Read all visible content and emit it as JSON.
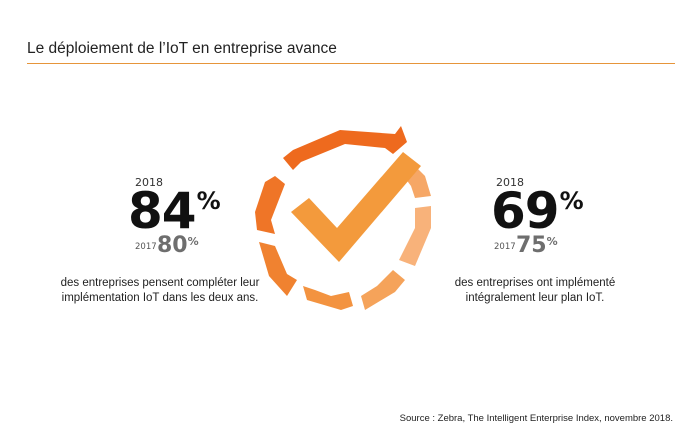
{
  "header": {
    "title": "Le déploiement de l’IoT en entreprise avance"
  },
  "left_stat": {
    "year": "2018",
    "value": "84",
    "unit": "%",
    "prev_year": "2017",
    "prev_value": "80",
    "prev_unit": "%",
    "description_line1": "des entreprises pensent compléter leur",
    "description_line2": "implémentation IoT dans les deux ans."
  },
  "right_stat": {
    "year": "2018",
    "value": "69",
    "unit": "%",
    "prev_year": "2017",
    "prev_value": "75",
    "prev_unit": "%",
    "description_line1": "des entreprises ont implémenté",
    "description_line2": "intégralement leur plan IoT."
  },
  "graphic": {
    "icon": "checkmark-cycle-icon",
    "colors": {
      "dark_orange": "#ee6a1e",
      "mid_orange": "#f5913a",
      "light_orange": "#f8b27a",
      "check": "#f39a3c",
      "accent_rule": "#e6953a"
    }
  },
  "footer": {
    "source": "Source : Zebra, The Intelligent Enterprise Index, novembre 2018."
  }
}
